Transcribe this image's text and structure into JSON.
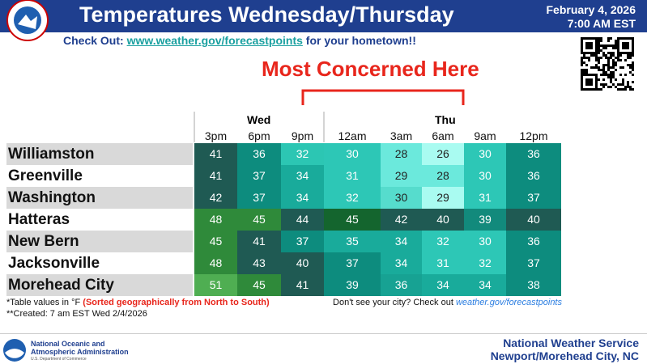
{
  "header": {
    "title": "Temperatures Wednesday/Thursday",
    "date": "February 4, 2026",
    "time": "7:00 AM EST",
    "checkout": {
      "lead": "Check Out:",
      "link": "www.weather.gov/forecastpoints",
      "tail": "for your hometown!!"
    }
  },
  "callout": "Most Concerned Here",
  "table": {
    "days": [
      "Wed",
      "Thu"
    ],
    "times": [
      "3pm",
      "6pm",
      "9pm",
      "12am",
      "3am",
      "6am",
      "9am",
      "12pm"
    ],
    "rows": [
      {
        "city": "Williamston",
        "values": [
          41,
          36,
          32,
          30,
          28,
          26,
          30,
          36
        ],
        "colors": [
          "#1f5a53",
          "#0d8c7e",
          "#2cc6b3",
          "#2dc7b6",
          "#6be9dc",
          "#a9fbf1",
          "#2dc7b6",
          "#0d8c7e"
        ]
      },
      {
        "city": "Greenville",
        "values": [
          41,
          37,
          34,
          31,
          29,
          28,
          30,
          36
        ],
        "colors": [
          "#1f5a53",
          "#0d8c7e",
          "#19ab9b",
          "#2dc7b6",
          "#6be9dc",
          "#6be9dc",
          "#2dc7b6",
          "#0d8c7e"
        ]
      },
      {
        "city": "Washington",
        "values": [
          42,
          37,
          34,
          32,
          30,
          29,
          31,
          37
        ],
        "colors": [
          "#1f5a53",
          "#0d8c7e",
          "#19ab9b",
          "#2dc7b6",
          "#56dccd",
          "#a9fbf1",
          "#2dc7b6",
          "#0d8c7e"
        ]
      },
      {
        "city": "Hatteras",
        "values": [
          48,
          45,
          44,
          45,
          42,
          40,
          39,
          40
        ],
        "colors": [
          "#2f8a3a",
          "#2f8a3a",
          "#1f5a53",
          "#14652e",
          "#1f5a53",
          "#1f5a53",
          "#128a7c",
          "#1f5a53"
        ]
      },
      {
        "city": "New Bern",
        "values": [
          45,
          41,
          37,
          35,
          34,
          32,
          30,
          36
        ],
        "colors": [
          "#2f8a3a",
          "#1f5a53",
          "#0d8c7e",
          "#19ab9b",
          "#19ab9b",
          "#2dc7b6",
          "#2dc7b6",
          "#0d8c7e"
        ]
      },
      {
        "city": "Jacksonville",
        "values": [
          48,
          43,
          40,
          37,
          34,
          31,
          32,
          37
        ],
        "colors": [
          "#2f8a3a",
          "#1f5a53",
          "#1f5a53",
          "#0d8c7e",
          "#19ab9b",
          "#2dc7b6",
          "#2dc7b6",
          "#0d8c7e"
        ]
      },
      {
        "city": "Morehead City",
        "values": [
          51,
          45,
          41,
          39,
          36,
          34,
          34,
          38
        ],
        "colors": [
          "#4fae52",
          "#2f8a3a",
          "#1f5a53",
          "#0d8c7e",
          "#17a293",
          "#19ab9b",
          "#19ab9b",
          "#0d8c7e"
        ]
      }
    ]
  },
  "notes": {
    "units": "*Table values in °F",
    "sorted": "(Sorted geographically from North to South)",
    "created": "**Created: 7 am EST Wed 2/4/2026",
    "city_prompt": "Don't see your city? Check out",
    "city_link": "weather.gov/forecastpoints"
  },
  "footer": {
    "noaa_line1": "National Oceanic and",
    "noaa_line2": "Atmospheric Administration",
    "noaa_line3": "U.S. Department of Commerce",
    "office_line1": "National Weather Service",
    "office_line2": "Newport/Morehead City, NC"
  }
}
